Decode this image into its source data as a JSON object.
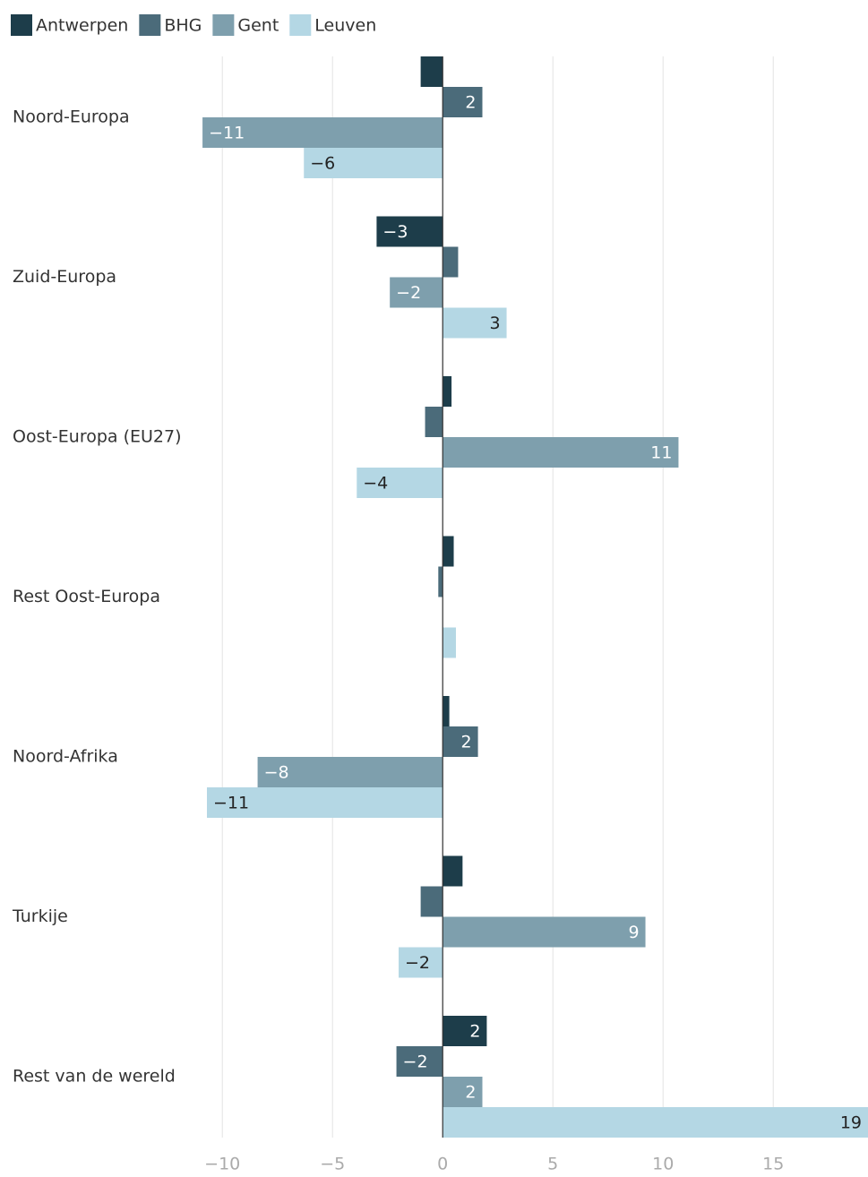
{
  "chart_data": {
    "type": "grouped-horizontal-bar",
    "categories": [
      "Noord-Europa",
      "Zuid-Europa",
      "Oost-Europa (EU27)",
      "Rest Oost-Europa",
      "Noord-Afrika",
      "Turkije",
      "Rest van de wereld"
    ],
    "series": [
      {
        "name": "Antwerpen",
        "color": "#1d3d4a",
        "values": [
          -1.0,
          -3.0,
          0.4,
          0.5,
          0.3,
          0.9,
          2.0
        ],
        "value_labels": [
          null,
          "−3",
          null,
          null,
          null,
          null,
          "2"
        ]
      },
      {
        "name": "BHG",
        "color": "#4b6b7a",
        "values": [
          1.8,
          0.7,
          -0.8,
          -0.2,
          1.6,
          -1.0,
          -2.1
        ],
        "value_labels": [
          "2",
          null,
          null,
          null,
          "2",
          null,
          "−2"
        ]
      },
      {
        "name": "Gent",
        "color": "#7e9fad",
        "values": [
          -10.9,
          -2.4,
          10.7,
          0,
          -8.4,
          9.2,
          1.8
        ],
        "value_labels": [
          "−11",
          "−2",
          "11",
          null,
          "−8",
          "9",
          "2"
        ]
      },
      {
        "name": "Leuven",
        "color": "#b4d7e4",
        "values": [
          -6.3,
          2.9,
          -3.9,
          0.6,
          -10.7,
          -2.0,
          19.3
        ],
        "value_labels": [
          "−6",
          "3",
          "−4",
          null,
          "−11",
          "−2",
          "19"
        ]
      }
    ],
    "xlim": [
      -11,
      19.3
    ],
    "xticks": [
      {
        "value": -10,
        "label": "−10"
      },
      {
        "value": -5,
        "label": "−5"
      },
      0,
      5,
      10,
      15
    ],
    "grid": true,
    "legend": "top"
  }
}
